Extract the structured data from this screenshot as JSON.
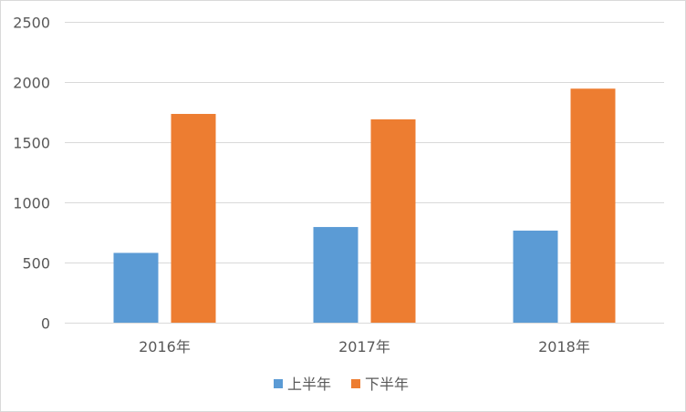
{
  "chart_data": {
    "type": "bar",
    "title": "",
    "xlabel": "",
    "ylabel": "",
    "categories": [
      "2016年",
      "2017年",
      "2018年"
    ],
    "series": [
      {
        "name": "上半年",
        "values": [
          580,
          795,
          765
        ],
        "color": "#5b9bd5"
      },
      {
        "name": "下半年",
        "values": [
          1735,
          1690,
          1945
        ],
        "color": "#ed7d31"
      }
    ],
    "ylim": [
      0,
      2500
    ],
    "yticks": [
      0,
      500,
      1000,
      1500,
      2000,
      2500
    ],
    "grid": true,
    "gridline_color": "#d9d9d9",
    "legend_position": "bottom"
  }
}
